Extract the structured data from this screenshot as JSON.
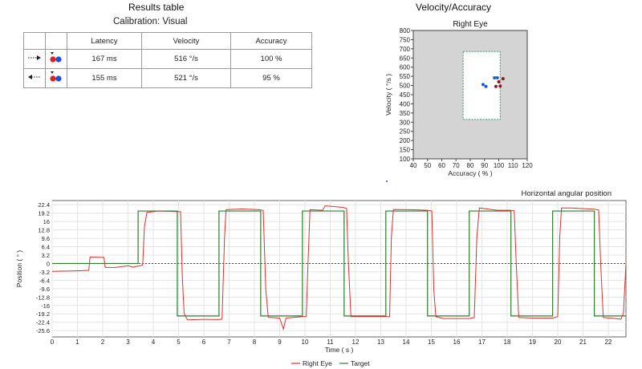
{
  "results": {
    "title": "Results table",
    "subtitle": "Calibration: Visual",
    "columns": [
      "",
      "",
      "Latency",
      "Velocity",
      "Accuracy"
    ],
    "rows": [
      {
        "direction": "right",
        "latency": "167 ms",
        "velocity": "516 °/s",
        "accuracy": "100 %"
      },
      {
        "direction": "left",
        "latency": "155 ms",
        "velocity": "521 °/s",
        "accuracy": "95 %"
      }
    ]
  },
  "velocity_panel": {
    "title": "Velocity/Accuracy"
  },
  "colors": {
    "target": "#2e7d2e",
    "eye": "#e03030",
    "box": "#3a9a6a",
    "plot_bg": "#d4d4d4",
    "blue": "#1f5fbf",
    "darkred": "#8b1a1a"
  },
  "chart_data": [
    {
      "type": "scatter",
      "title": "Right Eye",
      "xlabel": "Accuracy ( % )",
      "ylabel": "Velocity ( °/s )",
      "xlim": [
        40,
        120
      ],
      "ylim": [
        100,
        800
      ],
      "x_ticks": [
        "40",
        "50",
        "60",
        "70",
        "80",
        "90",
        "100",
        "110",
        "120"
      ],
      "y_ticks": [
        "100",
        "150",
        "200",
        "250",
        "300",
        "350",
        "400",
        "450",
        "500",
        "550",
        "600",
        "650",
        "700",
        "750",
        "800"
      ],
      "normal_range": {
        "x": [
          75,
          101
        ],
        "y": [
          315,
          685
        ]
      },
      "series": [
        {
          "name": "rightward",
          "color": "blue",
          "points": [
            [
              89,
              505
            ],
            [
              91,
              495
            ],
            [
              97,
              542
            ],
            [
              99,
              542
            ]
          ]
        },
        {
          "name": "leftward",
          "color": "darkred",
          "points": [
            [
              98,
              495
            ],
            [
              100,
              520
            ],
            [
              101,
              497
            ],
            [
              103,
              537
            ]
          ]
        }
      ]
    },
    {
      "type": "line",
      "title": "Horizontal angular position",
      "xlabel": "Time ( s )",
      "ylabel": "Position ( ° )",
      "xlim": [
        0,
        22.7
      ],
      "ylim": [
        -28,
        24
      ],
      "x_ticks": [
        "0",
        "1",
        "2",
        "3",
        "4",
        "5",
        "6",
        "7",
        "8",
        "9",
        "10",
        "11",
        "12",
        "13",
        "14",
        "15",
        "16",
        "17",
        "18",
        "19",
        "20",
        "21",
        "22"
      ],
      "y_ticks": [
        "22.4",
        "19.2",
        "16",
        "12.8",
        "9.6",
        "6.4",
        "3.2",
        "0",
        "-3.2",
        "-6.4",
        "-9.6",
        "-12.8",
        "-16",
        "-19.2",
        "-22.4",
        "-25.6"
      ],
      "legend": [
        "Right Eye",
        "Target"
      ],
      "target_steps": [
        [
          0,
          0
        ],
        [
          3.4,
          20
        ],
        [
          4.95,
          -20
        ],
        [
          6.6,
          20
        ],
        [
          8.25,
          -20
        ],
        [
          9.9,
          20
        ],
        [
          11.55,
          -20
        ],
        [
          13.2,
          20
        ],
        [
          14.85,
          -20
        ],
        [
          16.5,
          20
        ],
        [
          18.15,
          -20
        ],
        [
          19.8,
          20
        ],
        [
          21.45,
          -20
        ],
        [
          22.7,
          -20
        ]
      ],
      "series": [
        {
          "name": "Right Eye",
          "color": "eye",
          "points": [
            [
              0,
              -3
            ],
            [
              1.0,
              -2.8
            ],
            [
              1.45,
              -2.6
            ],
            [
              1.5,
              2.5
            ],
            [
              2.05,
              2.3
            ],
            [
              2.1,
              -1.5
            ],
            [
              2.5,
              -1.5
            ],
            [
              3.0,
              -0.9
            ],
            [
              3.2,
              -1.4
            ],
            [
              3.5,
              -0.8
            ],
            [
              3.58,
              -0.6
            ],
            [
              3.65,
              14
            ],
            [
              3.75,
              19.5
            ],
            [
              4.2,
              20
            ],
            [
              4.95,
              19.8
            ],
            [
              5.08,
              19.8
            ],
            [
              5.15,
              -5
            ],
            [
              5.22,
              -19
            ],
            [
              5.35,
              -21.5
            ],
            [
              6.0,
              -21.3
            ],
            [
              6.6,
              -21.4
            ],
            [
              6.72,
              -21.2
            ],
            [
              6.82,
              10
            ],
            [
              6.88,
              20.5
            ],
            [
              7.5,
              20.8
            ],
            [
              8.2,
              20.5
            ],
            [
              8.35,
              20.2
            ],
            [
              8.45,
              -10
            ],
            [
              8.55,
              -20.5
            ],
            [
              9.0,
              -20.8
            ],
            [
              9.15,
              -25
            ],
            [
              9.25,
              -20.8
            ],
            [
              9.9,
              -20.3
            ],
            [
              10.05,
              -20.3
            ],
            [
              10.12,
              0
            ],
            [
              10.2,
              20.5
            ],
            [
              10.7,
              20.3
            ],
            [
              10.8,
              22
            ],
            [
              11.5,
              21.4
            ],
            [
              11.65,
              21
            ],
            [
              11.72,
              0
            ],
            [
              11.82,
              -20.3
            ],
            [
              12.4,
              -20.3
            ],
            [
              13.2,
              -20.3
            ],
            [
              13.35,
              -20.3
            ],
            [
              13.42,
              10
            ],
            [
              13.5,
              20.6
            ],
            [
              14.2,
              20.5
            ],
            [
              14.85,
              20.3
            ],
            [
              15.02,
              20
            ],
            [
              15.1,
              -10
            ],
            [
              15.18,
              -20.3
            ],
            [
              15.5,
              -21
            ],
            [
              16.5,
              -21
            ],
            [
              16.7,
              -20.6
            ],
            [
              16.8,
              10
            ],
            [
              16.9,
              21.2
            ],
            [
              17.6,
              20.3
            ],
            [
              18.15,
              20.3
            ],
            [
              18.28,
              20.1
            ],
            [
              18.36,
              0
            ],
            [
              18.46,
              -20.6
            ],
            [
              19.0,
              -20.8
            ],
            [
              19.8,
              -20.8
            ],
            [
              20.0,
              -20.3
            ],
            [
              20.08,
              10
            ],
            [
              20.15,
              21.2
            ],
            [
              20.5,
              21.2
            ],
            [
              21.45,
              20.7
            ],
            [
              21.62,
              20.4
            ],
            [
              21.7,
              0
            ],
            [
              21.8,
              -20.6
            ],
            [
              22.3,
              -21
            ],
            [
              22.5,
              -21.2
            ],
            [
              22.6,
              -19
            ],
            [
              22.7,
              0
            ]
          ]
        }
      ]
    }
  ]
}
